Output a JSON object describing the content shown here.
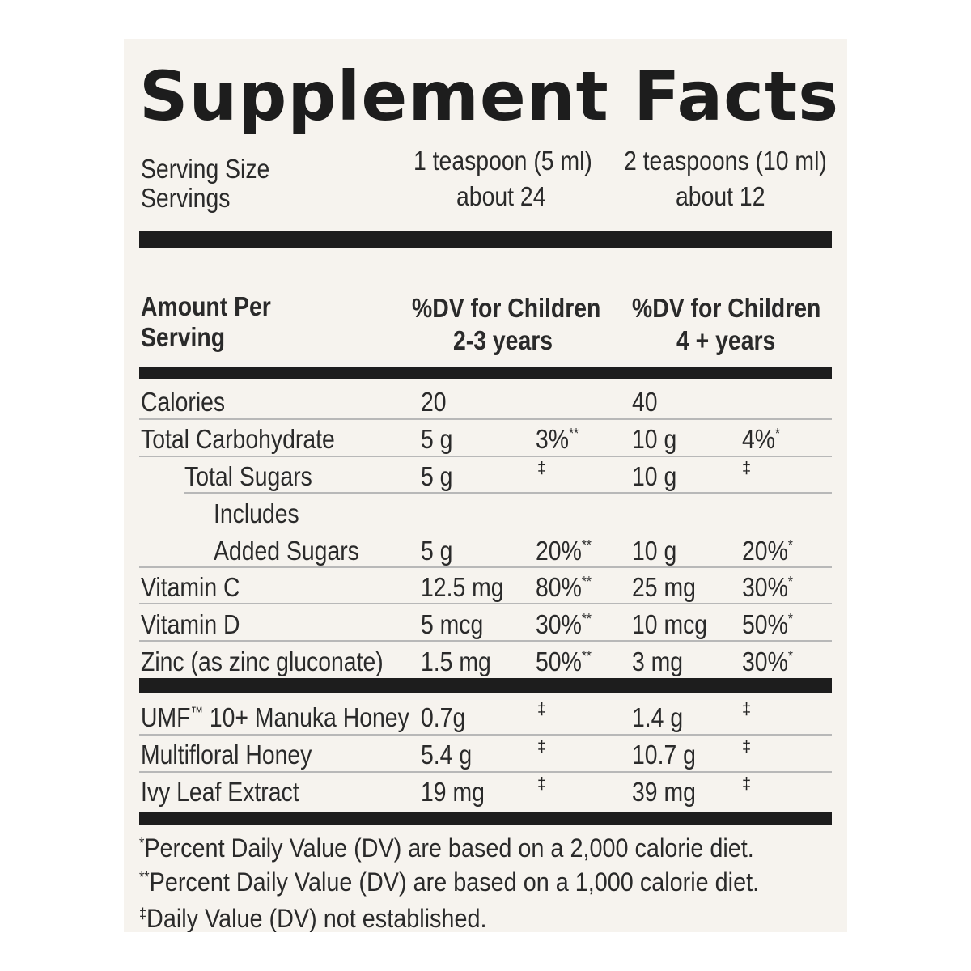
{
  "title": "Supplement Facts",
  "serving": {
    "size_label": "Serving Size",
    "servings_label": "Servings",
    "col1_size": "1 teaspoon (5 ml)",
    "col1_servings": "about 24",
    "col2_size": "2 teaspoons (10 ml)",
    "col2_servings": "about 12"
  },
  "header": {
    "amount_line1": "Amount Per",
    "amount_line2": "Serving",
    "col1_line1": "%DV for Children",
    "col1_line2": "2-3 years",
    "col2_line1": "%DV for Children",
    "col2_line2": "4 + years"
  },
  "rows": [
    {
      "name": "Calories",
      "a1": "20",
      "d1": "",
      "m1": "",
      "a2": "40",
      "d2": "",
      "m2": ""
    },
    {
      "name": "Total Carbohydrate",
      "a1": "5 g",
      "d1": "3%",
      "m1": "**",
      "a2": "10 g",
      "d2": "4%",
      "m2": "*"
    },
    {
      "name": "Total Sugars",
      "a1": "5 g",
      "d1": "",
      "m1": "‡",
      "a2": "10 g",
      "d2": "",
      "m2": "‡"
    },
    {
      "name_line1": "Includes",
      "name": "Added Sugars",
      "a1": "5 g",
      "d1": "20%",
      "m1": "**",
      "a2": "10 g",
      "d2": "20%",
      "m2": "*"
    },
    {
      "name": "Vitamin C",
      "a1": "12.5 mg",
      "d1": "80%",
      "m1": "**",
      "a2": "25 mg",
      "d2": "30%",
      "m2": "*"
    },
    {
      "name": "Vitamin D",
      "a1": "5 mcg",
      "d1": "30%",
      "m1": "**",
      "a2": "10 mcg",
      "d2": "50%",
      "m2": "*"
    },
    {
      "name": "Zinc (as zinc gluconate)",
      "a1": "1.5 mg",
      "d1": "50%",
      "m1": "**",
      "a2": "3 mg",
      "d2": "30%",
      "m2": "*"
    }
  ],
  "other": [
    {
      "name": "UMF",
      "tm": "™",
      "name_rest": " 10+ Manuka Honey",
      "a1": "0.7g",
      "m1": "‡",
      "a2": "1.4 g",
      "m2": "‡"
    },
    {
      "name": "Multifloral Honey",
      "a1": "5.4 g",
      "m1": "‡",
      "a2": "10.7 g",
      "m2": "‡"
    },
    {
      "name": "Ivy Leaf Extract",
      "a1": "19 mg",
      "m1": "‡",
      "a2": "39 mg",
      "m2": "‡"
    }
  ],
  "footnotes": [
    {
      "mark": "*",
      "text": "Percent Daily Value (DV) are based on a 2,000 calorie diet."
    },
    {
      "mark": "**",
      "text": "Percent Daily Value (DV) are based on a 1,000 calorie diet."
    },
    {
      "mark": "‡",
      "text": "Daily Value (DV) not established."
    }
  ]
}
